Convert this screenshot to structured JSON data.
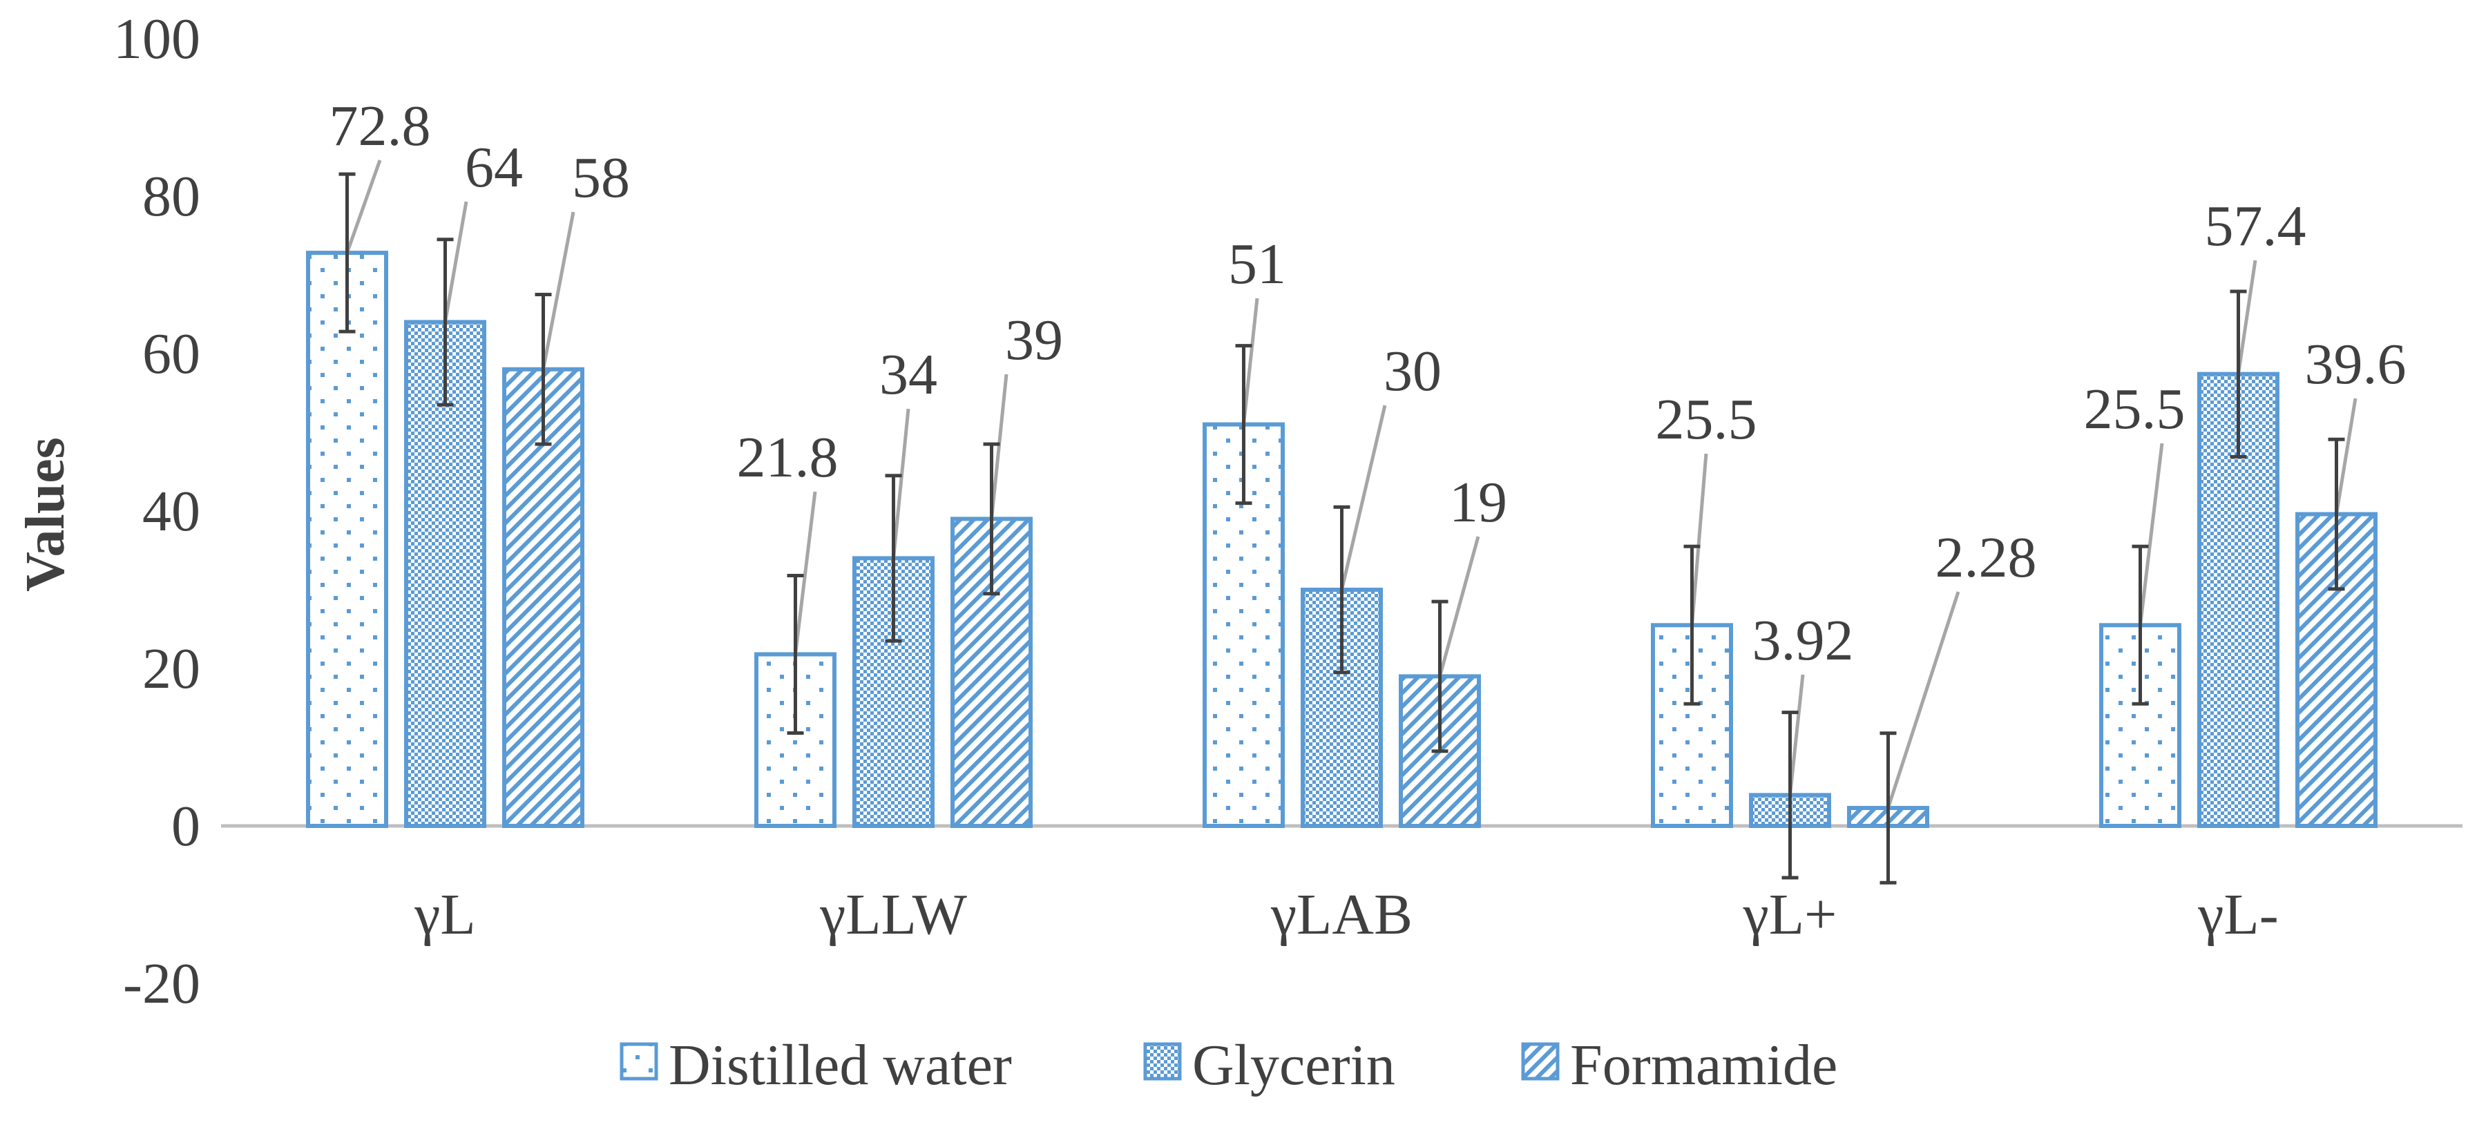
{
  "chart_data": {
    "type": "bar",
    "title": "",
    "xlabel": "",
    "ylabel": "Values",
    "ylim": [
      -20,
      100
    ],
    "yticks": [
      -20,
      0,
      20,
      40,
      60,
      80,
      100
    ],
    "ytick_labels": [
      "-20",
      "0",
      "20",
      "40",
      "60",
      "80",
      "100"
    ],
    "grid": false,
    "legend_position": "bottom",
    "categories": [
      "γL",
      "γLLW",
      "γLAB",
      "γL+",
      "γL-"
    ],
    "series": [
      {
        "name": "Distilled water",
        "pattern": "dots",
        "values": [
          72.8,
          21.8,
          51,
          25.5,
          25.5
        ],
        "labels": [
          "72.8",
          "21.8",
          "51",
          "25.5",
          "25.5"
        ],
        "error": [
          10,
          10,
          10,
          10,
          10
        ]
      },
      {
        "name": "Glycerin",
        "pattern": "checker",
        "values": [
          64,
          34,
          30,
          3.92,
          57.4
        ],
        "labels": [
          "64",
          "34",
          "30",
          "3.92",
          "57.4"
        ],
        "error": [
          10.5,
          10.5,
          10.5,
          10.5,
          10.5
        ]
      },
      {
        "name": "Formamide",
        "pattern": "diagonal",
        "values": [
          58,
          39,
          19,
          2.28,
          39.6
        ],
        "labels": [
          "58",
          "39",
          "19",
          "2.28",
          "39.6"
        ],
        "error": [
          9.5,
          9.5,
          9.5,
          9.5,
          9.5
        ]
      }
    ],
    "colors": {
      "bar_stroke": "#5b9bd5",
      "bar_pattern": "#5b9bd5",
      "axis_line": "#bfbfbf",
      "error_bar": "#404040",
      "leader_line": "#a6a6a6",
      "text": "#404040"
    }
  }
}
